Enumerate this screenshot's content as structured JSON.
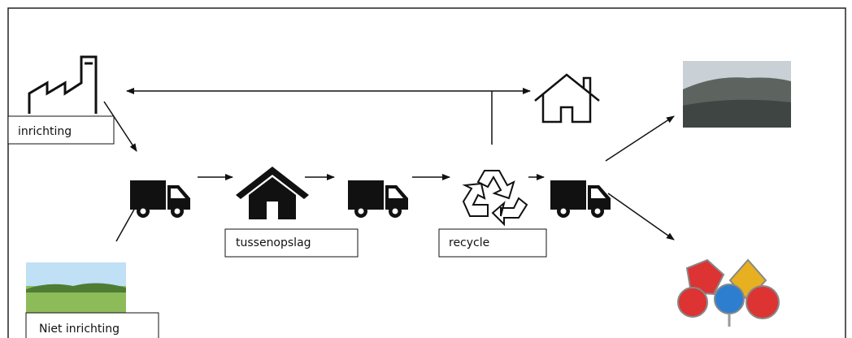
{
  "labels": {
    "source": "inrichting",
    "storage": "tussenopslag",
    "recycle": "recycle",
    "other_source": "Niet inrichting"
  }
}
